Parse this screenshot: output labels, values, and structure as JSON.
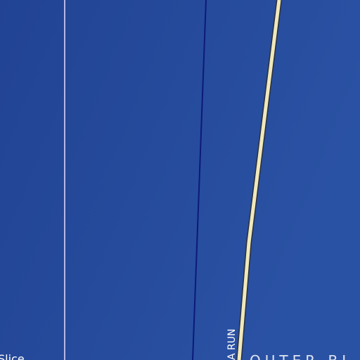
{
  "map": {
    "colors": {
      "water": "#224393",
      "water_shade": "#2a52a4",
      "road_fill": "#efe8bc",
      "road_casing": "#2a2f3a",
      "boundary_dark": "#0c1a7a",
      "boundary_light": "#b7b8e8"
    },
    "labels": {
      "road_name": "A RUN",
      "area_name": "OUTER BL",
      "place_name": "Slice"
    }
  }
}
